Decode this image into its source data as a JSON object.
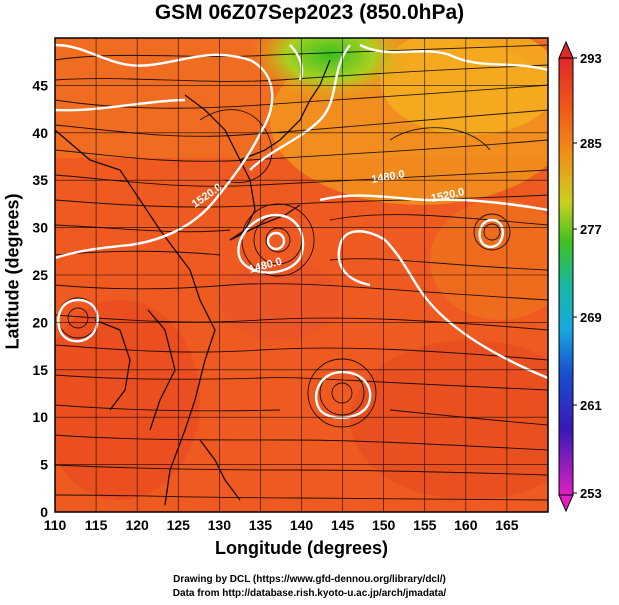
{
  "title": "GSM 06Z07Sep2023 (850.0hPa)",
  "x_axis": {
    "label": "Longitude (degrees)",
    "ticks": [
      "110",
      "115",
      "120",
      "125",
      "130",
      "135",
      "140",
      "145",
      "150",
      "155",
      "160",
      "165"
    ]
  },
  "y_axis": {
    "label": "Latitude  (degrees)",
    "ticks": [
      "0",
      "5",
      "10",
      "15",
      "20",
      "25",
      "30",
      "35",
      "40",
      "45"
    ]
  },
  "colorbar": {
    "labels": [
      "293",
      "285",
      "277",
      "269",
      "261",
      "253"
    ],
    "colors": [
      "#e03030",
      "#f07818",
      "#e8c020",
      "#40c020",
      "#18a8d8",
      "#2030c0",
      "#d020c8"
    ]
  },
  "contour_labels": [
    "1520.0",
    "1480.0",
    "1480.0",
    "1520.0"
  ],
  "credits": {
    "line1": "Drawing by DCL (https://www.gfd-dennou.org/library/dcl/)",
    "line2": "Data from http://database.rish.kyoto-u.ac.jp/arch/jmadata/"
  }
}
